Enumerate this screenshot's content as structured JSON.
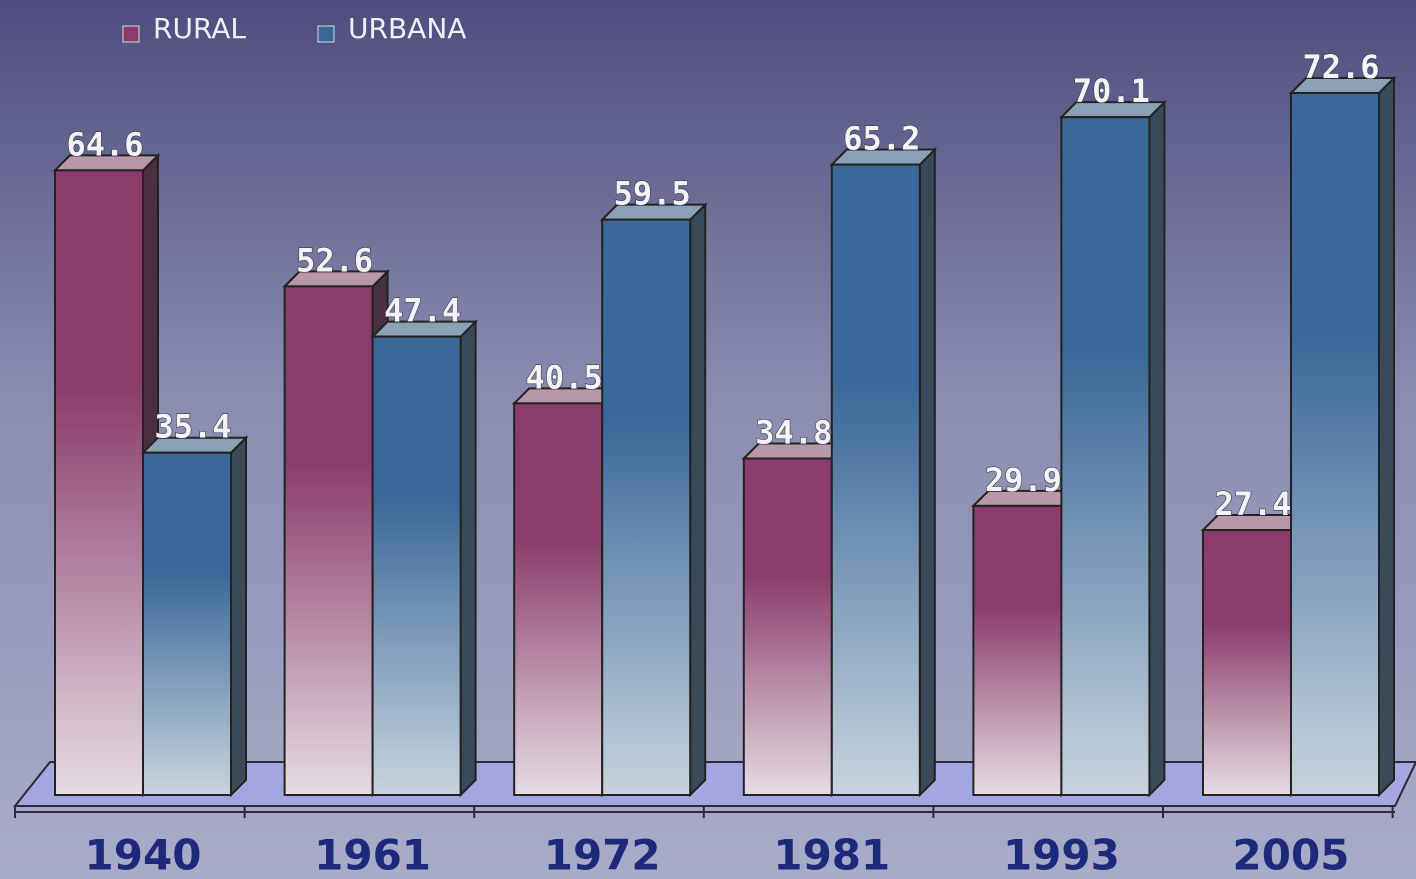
{
  "chart_data": {
    "type": "bar3d",
    "categories": [
      "1940",
      "1961",
      "1972",
      "1981",
      "1993",
      "2005"
    ],
    "series": [
      {
        "name": "RURAL",
        "color": "#8a3d6c",
        "values": [
          64.6,
          52.6,
          40.5,
          34.8,
          29.9,
          27.4
        ]
      },
      {
        "name": "URBANA",
        "color": "#3a6898",
        "values": [
          35.4,
          47.4,
          59.5,
          65.2,
          70.1,
          72.6
        ]
      }
    ],
    "legend": "top-left"
  }
}
